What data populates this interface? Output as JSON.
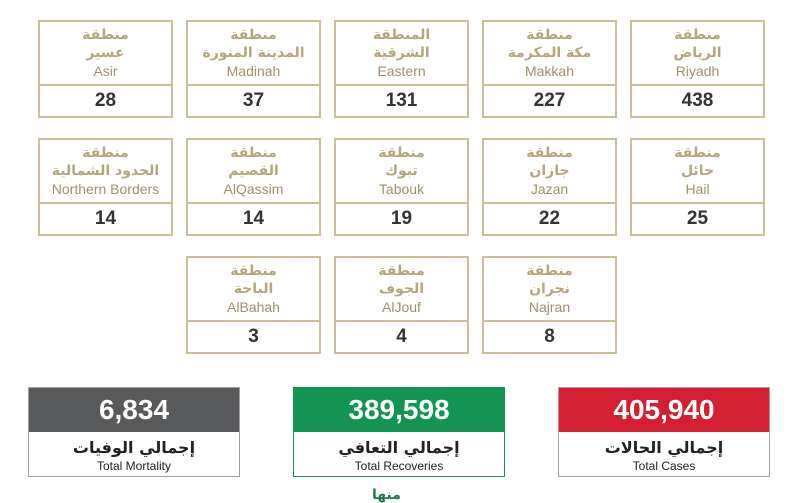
{
  "regions": [
    {
      "word": "منطقة",
      "ar": "الرياض",
      "en": "Riyadh",
      "count": "438"
    },
    {
      "word": "منطقة",
      "ar": "مكة المكرمة",
      "en": "Makkah",
      "count": "227"
    },
    {
      "word": "المنطقة",
      "ar": "الشرقية",
      "en": "Eastern",
      "count": "131"
    },
    {
      "word": "منطقة",
      "ar": "المدينة المنورة",
      "en": "Madinah",
      "count": "37"
    },
    {
      "word": "منطقة",
      "ar": "عسير",
      "en": "Asir",
      "count": "28"
    },
    {
      "word": "منطقة",
      "ar": "حائل",
      "en": "Hail",
      "count": "25"
    },
    {
      "word": "منطقة",
      "ar": "جازان",
      "en": "Jazan",
      "count": "22"
    },
    {
      "word": "منطقة",
      "ar": "تبوك",
      "en": "Tabouk",
      "count": "19"
    },
    {
      "word": "منطقة",
      "ar": "القصيم",
      "en": "AlQassim",
      "count": "14"
    },
    {
      "word": "منطقة",
      "ar": "الحدود الشمالية",
      "en": "Northern Borders",
      "count": "14"
    },
    {
      "word": "منطقة",
      "ar": "نجران",
      "en": "Najran",
      "count": "8"
    },
    {
      "word": "منطقة",
      "ar": "الجوف",
      "en": "AlJouf",
      "count": "4"
    },
    {
      "word": "منطقة",
      "ar": "الباحة",
      "en": "AlBahah",
      "count": "3"
    }
  ],
  "totals": {
    "mortality": {
      "value": "6,834",
      "ar": "إجمالي الوفيات",
      "en": "Total Mortality",
      "color": "#58595b"
    },
    "recoveries": {
      "value": "389,598",
      "ar": "إجمالي التعافي",
      "en": "Total Recoveries",
      "color": "#139451"
    },
    "cases": {
      "value": "405,940",
      "ar": "إجمالي الحالات",
      "en": "Total Cases",
      "color": "#d41f33"
    }
  },
  "footer": {
    "mark": "منها"
  }
}
